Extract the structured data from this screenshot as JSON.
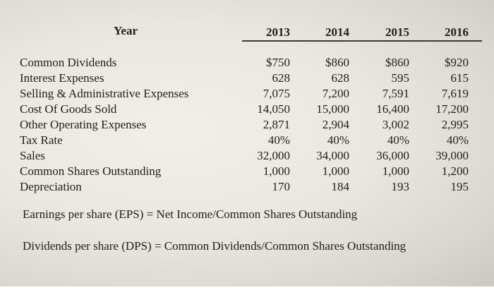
{
  "table": {
    "year_label": "Year",
    "years": [
      "2013",
      "2014",
      "2015",
      "2016"
    ],
    "rows": [
      {
        "label": "Common Dividends",
        "values": [
          "$750",
          "$860",
          "$860",
          "$920"
        ]
      },
      {
        "label": "Interest Expenses",
        "values": [
          "628",
          "628",
          "595",
          "615"
        ]
      },
      {
        "label": "Selling & Administrative Expenses",
        "values": [
          "7,075",
          "7,200",
          "7,591",
          "7,619"
        ]
      },
      {
        "label": "Cost Of Goods Sold",
        "values": [
          "14,050",
          "15,000",
          "16,400",
          "17,200"
        ]
      },
      {
        "label": "Other Operating Expenses",
        "values": [
          "2,871",
          "2,904",
          "3,002",
          "2,995"
        ]
      },
      {
        "label": "Tax Rate",
        "values": [
          "40%",
          "40%",
          "40%",
          "40%"
        ]
      },
      {
        "label": "Sales",
        "values": [
          "32,000",
          "34,000",
          "36,000",
          "39,000"
        ]
      },
      {
        "label": "Common Shares Outstanding",
        "values": [
          "1,000",
          "1,000",
          "1,000",
          "1,200"
        ]
      },
      {
        "label": "Depreciation",
        "values": [
          "170",
          "184",
          "193",
          "195"
        ]
      }
    ]
  },
  "formulas": {
    "eps": "Earnings per share (EPS) = Net Income/Common Shares Outstanding",
    "dps": "Dividends per share (DPS) = Common Dividends/Common Shares Outstanding"
  }
}
